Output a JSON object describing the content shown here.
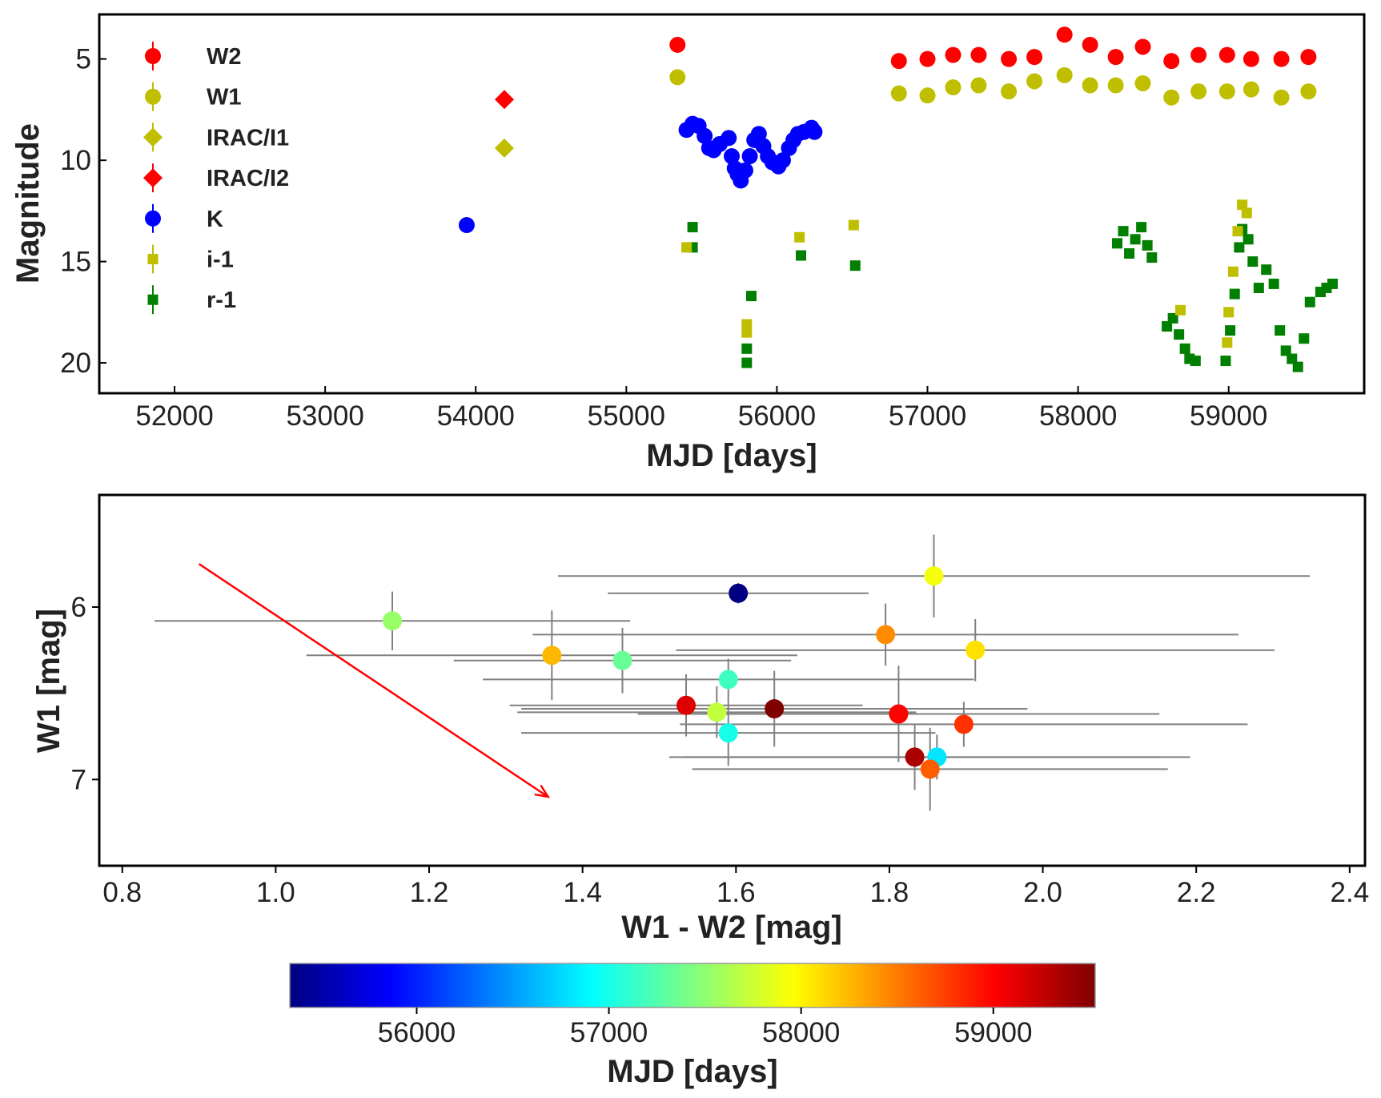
{
  "chart_data": [
    {
      "type": "scatter",
      "title": "",
      "xlabel": "MJD [days]",
      "ylabel": "Magnitude",
      "xlim": [
        51500,
        59900
      ],
      "ylim": [
        21.5,
        2.8
      ],
      "y_inverted": true,
      "xticks": [
        52000,
        53000,
        54000,
        55000,
        56000,
        57000,
        58000,
        59000
      ],
      "yticks": [
        5,
        10,
        15,
        20
      ],
      "legend_position": "top-left",
      "series": [
        {
          "name": "W2",
          "marker": "circle",
          "color": "#ff0000",
          "points": [
            [
              55340,
              4.3
            ],
            [
              56810,
              5.1
            ],
            [
              57000,
              5.0
            ],
            [
              57170,
              4.8
            ],
            [
              57340,
              4.8
            ],
            [
              57540,
              5.0
            ],
            [
              57710,
              4.9
            ],
            [
              57910,
              3.8
            ],
            [
              58080,
              4.3
            ],
            [
              58250,
              4.9
            ],
            [
              58430,
              4.4
            ],
            [
              58620,
              5.1
            ],
            [
              58800,
              4.8
            ],
            [
              58990,
              4.8
            ],
            [
              59150,
              5.0
            ],
            [
              59350,
              5.0
            ],
            [
              59530,
              4.9
            ]
          ]
        },
        {
          "name": "W1",
          "marker": "circle",
          "color": "#bfbf00",
          "points": [
            [
              55340,
              5.9
            ],
            [
              56810,
              6.7
            ],
            [
              57000,
              6.8
            ],
            [
              57170,
              6.4
            ],
            [
              57340,
              6.3
            ],
            [
              57540,
              6.6
            ],
            [
              57710,
              6.1
            ],
            [
              57910,
              5.8
            ],
            [
              58080,
              6.3
            ],
            [
              58250,
              6.3
            ],
            [
              58430,
              6.2
            ],
            [
              58620,
              6.9
            ],
            [
              58800,
              6.6
            ],
            [
              58990,
              6.6
            ],
            [
              59150,
              6.5
            ],
            [
              59350,
              6.9
            ],
            [
              59530,
              6.6
            ]
          ]
        },
        {
          "name": "IRAC/I1",
          "marker": "diamond",
          "color": "#bfbf00",
          "points": [
            [
              54190,
              9.4
            ]
          ]
        },
        {
          "name": "IRAC/I2",
          "marker": "diamond",
          "color": "#ff0000",
          "points": [
            [
              54190,
              7.0
            ]
          ]
        },
        {
          "name": "K",
          "marker": "circle",
          "color": "#0000ff",
          "points": [
            [
              53940,
              13.2
            ],
            [
              55400,
              8.5
            ],
            [
              55440,
              8.2
            ],
            [
              55480,
              8.3
            ],
            [
              55520,
              8.8
            ],
            [
              55550,
              9.4
            ],
            [
              55580,
              9.5
            ],
            [
              55620,
              9.2
            ],
            [
              55680,
              8.9
            ],
            [
              55700,
              9.8
            ],
            [
              55720,
              10.4
            ],
            [
              55740,
              10.7
            ],
            [
              55760,
              11.0
            ],
            [
              55790,
              10.5
            ],
            [
              55820,
              9.8
            ],
            [
              55850,
              9.0
            ],
            [
              55880,
              8.7
            ],
            [
              55910,
              9.3
            ],
            [
              55940,
              9.8
            ],
            [
              55970,
              10.1
            ],
            [
              56010,
              10.3
            ],
            [
              56040,
              10.0
            ],
            [
              56080,
              9.4
            ],
            [
              56110,
              9.0
            ],
            [
              56140,
              8.7
            ],
            [
              56180,
              8.6
            ],
            [
              56230,
              8.4
            ],
            [
              56250,
              8.6
            ]
          ]
        },
        {
          "name": "i-1",
          "marker": "square",
          "color": "#bfbf00",
          "points": [
            [
              55400,
              14.3
            ],
            [
              55800,
              18.1
            ],
            [
              55800,
              18.5
            ],
            [
              56150,
              13.8
            ],
            [
              56510,
              13.2
            ],
            [
              58680,
              17.4
            ],
            [
              58990,
              19.0
            ],
            [
              59000,
              17.5
            ],
            [
              59030,
              15.5
            ],
            [
              59060,
              13.5
            ],
            [
              59090,
              12.2
            ],
            [
              59120,
              12.6
            ]
          ]
        },
        {
          "name": "r-1",
          "marker": "square",
          "color": "#007f00",
          "points": [
            [
              55440,
              13.3
            ],
            [
              55440,
              14.3
            ],
            [
              55800,
              19.3
            ],
            [
              55800,
              20.0
            ],
            [
              55830,
              16.7
            ],
            [
              56160,
              14.7
            ],
            [
              56520,
              15.2
            ],
            [
              58260,
              14.1
            ],
            [
              58300,
              13.5
            ],
            [
              58340,
              14.6
            ],
            [
              58380,
              13.9
            ],
            [
              58420,
              13.3
            ],
            [
              58460,
              14.2
            ],
            [
              58490,
              14.8
            ],
            [
              58590,
              18.2
            ],
            [
              58630,
              17.8
            ],
            [
              58670,
              18.6
            ],
            [
              58710,
              19.3
            ],
            [
              58740,
              19.8
            ],
            [
              58780,
              19.9
            ],
            [
              58980,
              19.9
            ],
            [
              59010,
              18.4
            ],
            [
              59040,
              16.6
            ],
            [
              59070,
              14.3
            ],
            [
              59090,
              13.4
            ],
            [
              59130,
              13.9
            ],
            [
              59160,
              15.0
            ],
            [
              59200,
              16.3
            ],
            [
              59250,
              15.4
            ],
            [
              59300,
              16.1
            ],
            [
              59340,
              18.4
            ],
            [
              59380,
              19.4
            ],
            [
              59420,
              19.8
            ],
            [
              59460,
              20.2
            ],
            [
              59500,
              18.8
            ],
            [
              59540,
              17.0
            ],
            [
              59610,
              16.5
            ],
            [
              59650,
              16.3
            ],
            [
              59690,
              16.1
            ]
          ]
        }
      ]
    },
    {
      "type": "scatter",
      "title": "",
      "xlabel": "W1 - W2 [mag]",
      "ylabel": "W1 [mag]",
      "xlim": [
        0.77,
        2.42
      ],
      "ylim": [
        7.5,
        5.35
      ],
      "y_inverted": true,
      "xticks": [
        0.8,
        1.0,
        1.2,
        1.4,
        1.6,
        1.8,
        2.0,
        2.2,
        2.4
      ],
      "xtick_labels": [
        "0.8",
        "1.0",
        "1.2",
        "1.4",
        "1.6",
        "1.8",
        "2.0",
        "2.2",
        "2.4"
      ],
      "yticks": [
        6,
        7
      ],
      "arrow": {
        "from": [
          0.9,
          5.75
        ],
        "to": [
          1.355,
          7.1
        ],
        "color": "#ff0000"
      },
      "points": [
        {
          "x": 1.603,
          "y": 5.92,
          "mjd": 55340,
          "xerr": 0.17,
          "yerr": 0.06
        },
        {
          "x": 1.152,
          "y": 6.08,
          "mjd": 57540,
          "xerr": 0.31,
          "yerr": 0.17
        },
        {
          "x": 1.36,
          "y": 6.28,
          "mjd": 58250,
          "xerr": 0.32,
          "yerr": 0.26
        },
        {
          "x": 1.452,
          "y": 6.31,
          "mjd": 57340,
          "xerr": 0.22,
          "yerr": 0.19
        },
        {
          "x": 1.59,
          "y": 6.42,
          "mjd": 57170,
          "xerr": 0.32,
          "yerr": 0.12
        },
        {
          "x": 1.535,
          "y": 6.57,
          "mjd": 59150,
          "xerr": 0.23,
          "yerr": 0.18
        },
        {
          "x": 1.575,
          "y": 6.61,
          "mjd": 57710,
          "xerr": 0.26,
          "yerr": 0.15
        },
        {
          "x": 1.65,
          "y": 6.59,
          "mjd": 59530,
          "xerr": 0.33,
          "yerr": 0.22
        },
        {
          "x": 1.59,
          "y": 6.73,
          "mjd": 57000,
          "xerr": 0.27,
          "yerr": 0.19
        },
        {
          "x": 1.795,
          "y": 6.16,
          "mjd": 58430,
          "xerr": 0.46,
          "yerr": 0.18
        },
        {
          "x": 1.858,
          "y": 5.82,
          "mjd": 57910,
          "xerr": 0.49,
          "yerr": 0.24
        },
        {
          "x": 1.912,
          "y": 6.25,
          "mjd": 58080,
          "xerr": 0.39,
          "yerr": 0.18
        },
        {
          "x": 1.812,
          "y": 6.62,
          "mjd": 59000,
          "xerr": 0.34,
          "yerr": 0.28
        },
        {
          "x": 1.897,
          "y": 6.68,
          "mjd": 58800,
          "xerr": 0.37,
          "yerr": 0.13
        },
        {
          "x": 1.833,
          "y": 6.87,
          "mjd": 59350,
          "xerr": 0.32,
          "yerr": 0.19
        },
        {
          "x": 1.862,
          "y": 6.87,
          "mjd": 56810,
          "xerr": 0.33,
          "yerr": 0.13
        },
        {
          "x": 1.853,
          "y": 6.94,
          "mjd": 58620,
          "xerr": 0.31,
          "yerr": 0.24
        }
      ]
    },
    {
      "type": "colorbar",
      "label": "MJD [days]",
      "range": [
        55340,
        59530
      ],
      "ticks": [
        56000,
        57000,
        58000,
        59000
      ],
      "colormap": "jet"
    }
  ]
}
